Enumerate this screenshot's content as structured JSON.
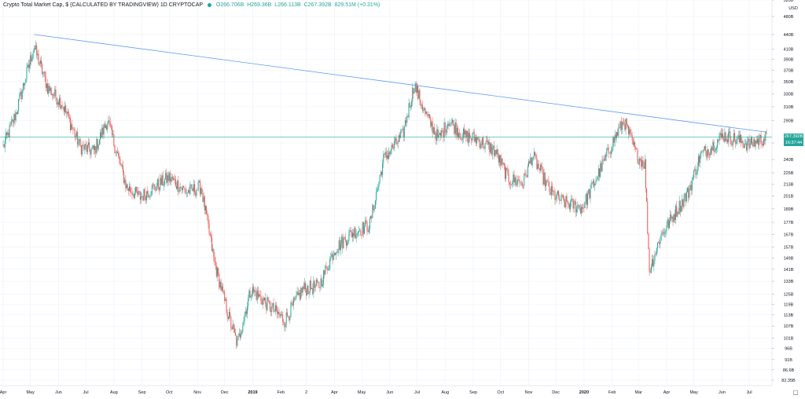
{
  "header": {
    "title": "Crypto Total Market Cap, $ (CALCULATED BY TRADINGVIEW)",
    "interval": "1D",
    "symbol": "CRYPTOCAP",
    "open": "O266.706B",
    "high": "H269.36B",
    "low": "L266.113B",
    "close": "C267.392B",
    "change": "829.51M (+0.31%)"
  },
  "price_axis": {
    "currency": "USD",
    "labels": [
      "520B",
      "480B",
      "440B",
      "410B",
      "390B",
      "370B",
      "350B",
      "330B",
      "310B",
      "290B",
      "260B",
      "240B",
      "225B",
      "213B",
      "201B",
      "189B",
      "177B",
      "167B",
      "157B",
      "149B",
      "141B",
      "133B",
      "125B",
      "119B",
      "113B",
      "107B",
      "101B",
      "96B",
      "91B",
      "86.6B",
      "82.35B"
    ],
    "last_price": "267.392B",
    "countdown": "16:37:44"
  },
  "time_axis": {
    "labels": [
      "Apr",
      "May",
      "Jun",
      "Jul",
      "Aug",
      "Sep",
      "Oct",
      "Nov",
      "Dec",
      "2019",
      "Feb",
      "2",
      "Apr",
      "May",
      "Jun",
      "Jul",
      "Aug",
      "Sep",
      "Oct",
      "Nov",
      "Dec",
      "2020",
      "Feb",
      "Mar",
      "Apr",
      "May",
      "Jun",
      "Jul"
    ]
  },
  "colors": {
    "up": "#26a69a",
    "down": "#ef5350",
    "trendline": "#5b9cf6",
    "grid": "#f0f3fa",
    "axis_text": "#131722"
  },
  "chart_data": {
    "type": "candlestick",
    "title": "Crypto Total Market Cap, $ (CALCULATED BY TRADINGVIEW)",
    "y_scale": "log",
    "ylim": [
      "82.35B",
      "520B"
    ],
    "x_range": [
      "2018-04-01",
      "2020-07-20"
    ],
    "grid": true,
    "monthly_close_B": [
      [
        "2018-04-01",
        255
      ],
      [
        "2018-04-15",
        300
      ],
      [
        "2018-05-05",
        415
      ],
      [
        "2018-05-20",
        340
      ],
      [
        "2018-06-05",
        315
      ],
      [
        "2018-06-25",
        255
      ],
      [
        "2018-07-10",
        250
      ],
      [
        "2018-07-25",
        290
      ],
      [
        "2018-08-15",
        210
      ],
      [
        "2018-08-30",
        200
      ],
      [
        "2018-09-15",
        210
      ],
      [
        "2018-10-01",
        220
      ],
      [
        "2018-10-20",
        205
      ],
      [
        "2018-11-05",
        210
      ],
      [
        "2018-11-20",
        145
      ],
      [
        "2018-12-05",
        113
      ],
      [
        "2018-12-15",
        98
      ],
      [
        "2018-12-30",
        128
      ],
      [
        "2019-01-15",
        120
      ],
      [
        "2019-02-05",
        110
      ],
      [
        "2019-02-25",
        128
      ],
      [
        "2019-03-15",
        130
      ],
      [
        "2019-04-01",
        155
      ],
      [
        "2019-04-20",
        168
      ],
      [
        "2019-05-10",
        175
      ],
      [
        "2019-05-25",
        240
      ],
      [
        "2019-06-15",
        270
      ],
      [
        "2019-06-28",
        345
      ],
      [
        "2019-07-10",
        300
      ],
      [
        "2019-07-25",
        265
      ],
      [
        "2019-08-05",
        290
      ],
      [
        "2019-08-20",
        270
      ],
      [
        "2019-09-05",
        265
      ],
      [
        "2019-09-25",
        250
      ],
      [
        "2019-10-10",
        218
      ],
      [
        "2019-10-26",
        215
      ],
      [
        "2019-11-05",
        245
      ],
      [
        "2019-11-25",
        205
      ],
      [
        "2019-12-10",
        195
      ],
      [
        "2019-12-30",
        190
      ],
      [
        "2020-01-15",
        220
      ],
      [
        "2020-02-01",
        260
      ],
      [
        "2020-02-14",
        290
      ],
      [
        "2020-02-28",
        245
      ],
      [
        "2020-03-08",
        235
      ],
      [
        "2020-03-13",
        140
      ],
      [
        "2020-03-25",
        165
      ],
      [
        "2020-04-10",
        185
      ],
      [
        "2020-04-25",
        205
      ],
      [
        "2020-05-08",
        245
      ],
      [
        "2020-05-20",
        255
      ],
      [
        "2020-06-02",
        270
      ],
      [
        "2020-06-15",
        265
      ],
      [
        "2020-07-01",
        258
      ],
      [
        "2020-07-20",
        267.392
      ]
    ],
    "annotations": [
      {
        "type": "trendline",
        "from": [
          "2018-05-05",
          440
        ],
        "to": [
          "2020-07-20",
          274
        ]
      },
      {
        "type": "horizontal_line",
        "value": 267.392
      }
    ]
  }
}
